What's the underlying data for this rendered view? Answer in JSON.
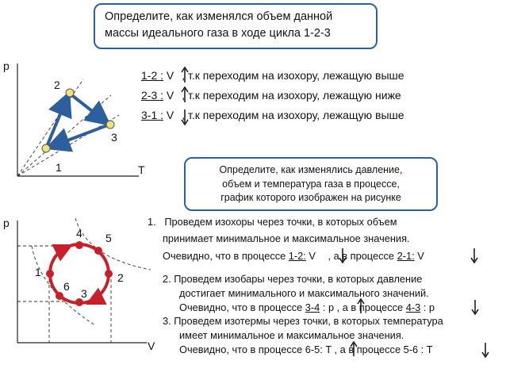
{
  "question1": {
    "line1": "Определите, как изменялся объем  данной",
    "line2": "массы идеального газа в ходе цикла 1-2-3"
  },
  "diagram1": {
    "axis_p": "p",
    "axis_T": "T",
    "points": [
      "1",
      "2",
      "3"
    ]
  },
  "answers1": [
    {
      "label": "1-2 :",
      "var": "V",
      "text": ", т.к переходим на изохору, лежащую выше",
      "arrow": "up"
    },
    {
      "label": "2-3 :",
      "var": "V",
      "text": ", т.к переходим на изохору, лежащую ниже",
      "arrow": "up"
    },
    {
      "label": "3-1 :",
      "var": "V",
      "text": ", т.к переходим на изохору, лежащую выше",
      "arrow": "down"
    }
  ],
  "question2": {
    "line1": "Определите, как изменялись давление,",
    "line2": "объем и температура   газа в  процессе,",
    "line3": "график  которого изображен на рисунке"
  },
  "diagram2": {
    "axis_p": "p",
    "axis_V": "V",
    "points": [
      "1",
      "2",
      "3",
      "4",
      "5",
      "6"
    ]
  },
  "answers2": {
    "item1": {
      "num": "1.",
      "line1": "Проведем изохоры  через точки, в которых объем",
      "line2": "принимает минимальное и максимальное значения.",
      "line3a": "Очевидно, что  в процессе ",
      "proc_a": "1-2:",
      "var_a": " V",
      "mid": " , а в процессе ",
      "proc_b": "2-1:",
      "var_b": " V"
    },
    "item2": {
      "line1": "2. Проведем изобары через точки, в которых давление",
      "line2": "достигает минимального и максимального значений.",
      "line3a": "Очевидно, что в процессе ",
      "proc_a": "3-4",
      "var_a": " : p",
      "mid": " , а в процессе ",
      "proc_b": "4-3",
      "var_b": " : p"
    },
    "item3": {
      "line1": "3. Проведем изотермы через точки, в которых температура",
      "line2": "имеет минимальное и максимальное значения.",
      "line3a": "Очевидно, что в процессе 6-5: T",
      "mid": " , а в процессе 5-6 : T"
    }
  },
  "colors": {
    "box_border": "#2b5fa8",
    "arrow_blue": "#2d5f9e",
    "cycle_red": "#c8202a",
    "point_yellow": "#f2e27a"
  }
}
